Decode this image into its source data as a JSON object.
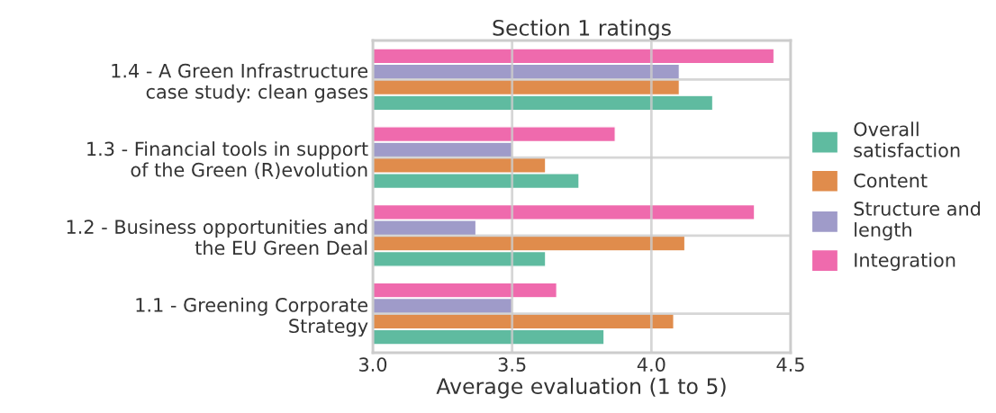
{
  "chart_data": {
    "type": "bar",
    "orientation": "horizontal",
    "title": "Section 1 ratings",
    "xlabel": "Average evaluation (1 to 5)",
    "categories": [
      "1.4 - A Green Infrastructure\ncase study: clean gases",
      "1.3 - Financial tools in support\nof the Green (R)evolution",
      "1.2 - Business opportunities and\nthe EU Green Deal",
      "1.1 - Greening Corporate\nStrategy"
    ],
    "series": [
      {
        "name": "Overall\nsatisfaction",
        "color": "#5fbba0",
        "values": [
          4.22,
          3.74,
          3.62,
          3.83
        ]
      },
      {
        "name": "Content",
        "color": "#e08c4c",
        "values": [
          4.1,
          3.62,
          4.12,
          4.08
        ]
      },
      {
        "name": "Structure and\nlength",
        "color": "#9f9bc9",
        "values": [
          4.1,
          3.5,
          3.37,
          3.5
        ]
      },
      {
        "name": "Integration",
        "color": "#ef6aad",
        "values": [
          4.44,
          3.87,
          4.37,
          3.66
        ]
      }
    ],
    "xlim": [
      3.0,
      4.5
    ],
    "xticks": [
      {
        "value": 3.0,
        "label": "3.0"
      },
      {
        "value": 3.5,
        "label": "3.5"
      },
      {
        "value": 4.0,
        "label": "4.0"
      },
      {
        "value": 4.5,
        "label": "4.5"
      }
    ],
    "grid": true,
    "legend": "right"
  }
}
